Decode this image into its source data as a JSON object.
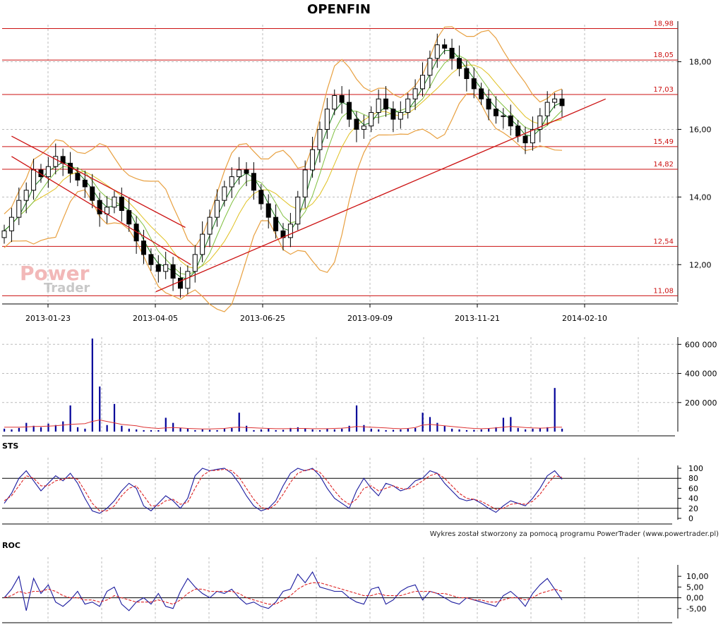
{
  "chart_data": [
    {
      "type": "candlestick",
      "title": "OPENFIN",
      "x_ticks": [
        "2013-01-23",
        "2013-04-05",
        "2013-06-25",
        "2013-09-09",
        "2013-11-21",
        "2014-02-10"
      ],
      "y_ticks": [
        "12,00",
        "14,00",
        "16,00",
        "18,00"
      ],
      "ylim": [
        10.9,
        19.2
      ],
      "grid": true,
      "overlays": [
        "Bollinger bands",
        "moving averages"
      ],
      "horizontal_levels": [
        {
          "value": 18.98,
          "label": "18,98"
        },
        {
          "value": 18.05,
          "label": "18,05"
        },
        {
          "value": 17.03,
          "label": "17,03"
        },
        {
          "value": 15.49,
          "label": "15,49"
        },
        {
          "value": 14.82,
          "label": "14,82"
        },
        {
          "value": 12.54,
          "label": "12,54"
        },
        {
          "value": 11.08,
          "label": "11,08"
        }
      ],
      "trendlines": [
        {
          "from": [
            "2012-12-28",
            15.8
          ],
          "to": [
            "2013-05-01",
            13.1
          ]
        },
        {
          "from": [
            "2012-12-28",
            15.2
          ],
          "to": [
            "2013-05-05",
            12.0
          ]
        },
        {
          "from": [
            "2013-04-10",
            11.2
          ],
          "to": [
            "2014-02-25",
            16.9
          ]
        }
      ],
      "close": [
        13.0,
        13.4,
        13.9,
        14.2,
        14.8,
        14.6,
        14.9,
        15.2,
        15.0,
        14.7,
        14.5,
        14.3,
        13.9,
        13.5,
        13.7,
        14.0,
        13.6,
        13.2,
        12.7,
        12.3,
        12.0,
        11.8,
        12.0,
        11.6,
        11.3,
        11.8,
        12.3,
        12.9,
        13.4,
        13.9,
        14.3,
        14.6,
        14.8,
        14.7,
        14.2,
        13.8,
        13.4,
        13.0,
        12.8,
        13.2,
        14.0,
        14.8,
        15.4,
        16.0,
        16.6,
        17.0,
        16.8,
        16.3,
        16.0,
        16.1,
        16.5,
        16.9,
        16.6,
        16.3,
        16.5,
        16.9,
        17.2,
        17.6,
        18.1,
        18.5,
        18.4,
        18.1,
        17.8,
        17.5,
        17.2,
        16.9,
        16.6,
        16.4,
        16.4,
        16.1,
        15.8,
        15.6,
        16.0,
        16.4,
        16.8,
        16.9,
        16.7
      ]
    },
    {
      "type": "bar",
      "title": "",
      "y_ticks": [
        "200 000",
        "400 000",
        "600 000"
      ],
      "ylim": [
        0,
        650000
      ],
      "series": [
        {
          "type": "bar",
          "color": "#000099",
          "values": [
            20000,
            15000,
            25000,
            60000,
            40000,
            30000,
            55000,
            45000,
            70000,
            180000,
            30000,
            20000,
            640000,
            310000,
            45000,
            190000,
            40000,
            20000,
            15000,
            10000,
            10000,
            10000,
            95000,
            60000,
            25000,
            20000,
            10000,
            15000,
            12000,
            10000,
            20000,
            25000,
            130000,
            40000,
            10000,
            15000,
            20000,
            10000,
            12000,
            25000,
            30000,
            20000,
            15000,
            10000,
            20000,
            15000,
            20000,
            40000,
            180000,
            45000,
            20000,
            15000,
            10000,
            12000,
            15000,
            20000,
            25000,
            130000,
            100000,
            60000,
            40000,
            20000,
            15000,
            10000,
            12000,
            15000,
            20000,
            30000,
            95000,
            100000,
            25000,
            15000,
            20000,
            25000,
            30000,
            300000,
            20000
          ]
        },
        {
          "type": "line",
          "color": "#dd3333",
          "values": [
            30000,
            30000,
            30000,
            32000,
            35000,
            36000,
            38000,
            40000,
            45000,
            50000,
            52000,
            55000,
            70000,
            80000,
            70000,
            60000,
            50000,
            45000,
            40000,
            30000,
            25000,
            22000,
            25000,
            28000,
            25000,
            22000,
            20000,
            18000,
            18000,
            20000,
            22000,
            28000,
            30000,
            28000,
            26000,
            24000,
            22000,
            20000,
            20000,
            21000,
            22000,
            22000,
            20000,
            20000,
            20000,
            22000,
            24000,
            28000,
            35000,
            33000,
            30000,
            28000,
            25000,
            22000,
            20000,
            22000,
            28000,
            45000,
            50000,
            45000,
            40000,
            35000,
            30000,
            25000,
            22000,
            20000,
            22000,
            25000,
            30000,
            35000,
            32000,
            28000,
            25000,
            24000,
            25000,
            30000,
            30000
          ]
        }
      ]
    },
    {
      "type": "line",
      "title": "STS",
      "y_ticks": [
        "0",
        "20",
        "40",
        "60",
        "80",
        "100"
      ],
      "ylim": [
        0,
        100
      ],
      "reference_lines": [
        20,
        80
      ],
      "series": [
        {
          "color": "#1a1a9e",
          "values": [
            30,
            50,
            80,
            95,
            75,
            55,
            70,
            85,
            75,
            90,
            70,
            40,
            15,
            10,
            20,
            35,
            55,
            70,
            60,
            25,
            15,
            30,
            45,
            35,
            20,
            40,
            85,
            100,
            95,
            98,
            100,
            90,
            70,
            45,
            25,
            15,
            20,
            35,
            65,
            90,
            100,
            95,
            100,
            85,
            60,
            40,
            30,
            20,
            55,
            80,
            60,
            45,
            70,
            65,
            55,
            60,
            75,
            80,
            95,
            90,
            70,
            55,
            40,
            35,
            38,
            30,
            20,
            12,
            25,
            35,
            30,
            25,
            40,
            60,
            85,
            95,
            78
          ]
        },
        {
          "color": "#dd2222",
          "values": [
            35,
            45,
            65,
            85,
            80,
            65,
            65,
            75,
            78,
            82,
            78,
            55,
            30,
            15,
            15,
            25,
            45,
            60,
            65,
            45,
            25,
            25,
            35,
            38,
            28,
            32,
            60,
            85,
            95,
            96,
            98,
            95,
            82,
            60,
            38,
            22,
            18,
            28,
            48,
            72,
            90,
            96,
            98,
            92,
            75,
            55,
            38,
            28,
            38,
            60,
            65,
            55,
            60,
            65,
            60,
            58,
            65,
            75,
            85,
            90,
            80,
            65,
            50,
            40,
            38,
            34,
            26,
            18,
            20,
            28,
            30,
            28,
            34,
            48,
            68,
            85,
            82
          ]
        }
      ]
    },
    {
      "type": "line",
      "title": "ROC",
      "y_ticks": [
        "-5,00",
        "0,00",
        "5,00",
        "10,00"
      ],
      "ylim": [
        -9,
        14
      ],
      "reference_lines": [
        0
      ],
      "series": [
        {
          "color": "#1a1a9e",
          "values": [
            0,
            4,
            10,
            -6,
            9,
            2,
            6,
            -2,
            -4,
            -1,
            3,
            -3,
            -2,
            -4,
            3,
            5,
            -3,
            -6,
            -2,
            0,
            -3,
            2,
            -4,
            -5,
            3,
            9,
            5,
            2,
            0,
            3,
            2,
            4,
            0,
            -3,
            -2,
            -4,
            -5,
            -2,
            3,
            4,
            11,
            7,
            12,
            5,
            4,
            3,
            3,
            0,
            -2,
            -3,
            4,
            5,
            -3,
            -1,
            3,
            5,
            6,
            -1,
            3,
            2,
            0,
            -2,
            -3,
            0,
            -1,
            -2,
            -3,
            -4,
            1,
            3,
            0,
            -4,
            2,
            6,
            9,
            4,
            -1
          ]
        },
        {
          "color": "#dd2222",
          "values": [
            0,
            1,
            3,
            2,
            3,
            3,
            4,
            3,
            1,
            0,
            0,
            -1,
            -1,
            -2,
            -1,
            1,
            0,
            -1,
            -2,
            -2,
            -2,
            -1,
            -2,
            -3,
            -1,
            2,
            4,
            4,
            3,
            3,
            3,
            3,
            2,
            0,
            -1,
            -2,
            -3,
            -3,
            -1,
            1,
            4,
            6,
            7,
            7,
            6,
            5,
            4,
            3,
            2,
            1,
            1,
            2,
            1,
            1,
            1,
            2,
            3,
            3,
            3,
            2,
            2,
            1,
            0,
            0,
            -1,
            -1,
            -2,
            -2,
            -1,
            0,
            0,
            -1,
            0,
            2,
            3,
            4,
            3
          ]
        }
      ]
    }
  ],
  "watermark": {
    "line1": "Power",
    "line2": "Trader"
  },
  "credit": "Wykres został stworzony za pomocą programu PowerTrader (www.powertrader.pl)",
  "colors": {
    "level_line": "#cc1111",
    "candle": "#000000",
    "volume_bar": "#000099",
    "osc_main": "#1a1a9e",
    "osc_signal": "#dd2222",
    "bollinger": "#e8a040",
    "grid": "#bbbbbb"
  }
}
